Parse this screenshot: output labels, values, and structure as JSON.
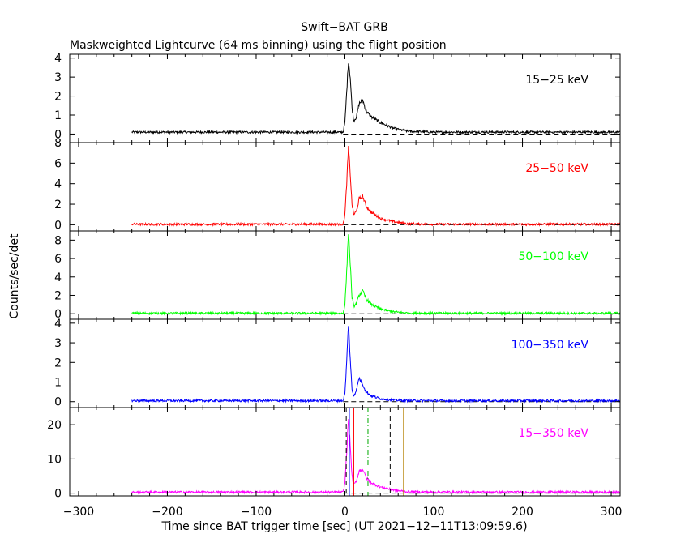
{
  "chart_data": {
    "type": "line",
    "title": "Swift−BAT GRB",
    "subtitle": "Maskweighted Lightcurve (64 ms binning) using the flight position",
    "xlabel": "Time since BAT trigger time [sec] (UT 2021−12−11T13:09:59.6)",
    "ylabel": "Counts/sec/det",
    "xlim": [
      -310,
      310
    ],
    "x_ticks": [
      -300,
      -200,
      -100,
      0,
      100,
      200,
      300
    ],
    "x_tick_labels": [
      "−300",
      "−200",
      "−100",
      "0",
      "100",
      "200",
      "300"
    ],
    "data_start": -240,
    "grid": false,
    "panels": [
      {
        "band": "15−25 keV",
        "color": "#000000",
        "ylim": [
          -0.45,
          4.2
        ],
        "y_ticks": [
          0,
          1,
          2,
          3,
          4
        ],
        "x": [
          -240,
          -100,
          -2,
          0,
          2,
          4,
          6,
          8,
          10,
          13,
          16,
          20,
          24,
          30,
          40,
          55,
          70,
          100,
          200,
          310
        ],
        "y": [
          0.1,
          0.1,
          0.1,
          0.6,
          2.2,
          3.9,
          3.0,
          1.4,
          0.7,
          0.9,
          1.6,
          1.8,
          1.2,
          0.9,
          0.6,
          0.3,
          0.15,
          0.1,
          0.1,
          0.1
        ]
      },
      {
        "band": "25−50 keV",
        "color": "#ff0000",
        "ylim": [
          -0.6,
          8.0
        ],
        "y_ticks": [
          0,
          2,
          4,
          6,
          8
        ],
        "x": [
          -240,
          -100,
          -2,
          0,
          2,
          4,
          6,
          8,
          10,
          13,
          16,
          20,
          24,
          30,
          40,
          55,
          70,
          100,
          200,
          310
        ],
        "y": [
          0.05,
          0.05,
          0.05,
          1.0,
          4.0,
          7.5,
          5.0,
          2.0,
          1.0,
          1.3,
          2.5,
          2.8,
          1.8,
          1.2,
          0.6,
          0.3,
          0.1,
          0.05,
          0.05,
          0.05
        ]
      },
      {
        "band": "50−100 keV",
        "color": "#00ff00",
        "ylim": [
          -0.6,
          9.0
        ],
        "y_ticks": [
          0,
          2,
          4,
          6,
          8
        ],
        "x": [
          -240,
          -100,
          -2,
          0,
          2,
          4,
          6,
          8,
          10,
          13,
          16,
          20,
          24,
          30,
          40,
          55,
          70,
          100,
          200,
          310
        ],
        "y": [
          0.05,
          0.05,
          0.05,
          1.0,
          4.5,
          9.0,
          5.5,
          1.8,
          0.8,
          1.1,
          2.0,
          2.5,
          1.6,
          1.0,
          0.5,
          0.2,
          0.08,
          0.05,
          0.05,
          0.05
        ]
      },
      {
        "band": "100−350 keV",
        "color": "#0000ff",
        "ylim": [
          -0.3,
          4.2
        ],
        "y_ticks": [
          0,
          1,
          2,
          3,
          4
        ],
        "x": [
          -240,
          -100,
          -2,
          0,
          2,
          4,
          6,
          8,
          10,
          13,
          16,
          20,
          24,
          30,
          40,
          55,
          70,
          100,
          200,
          310
        ],
        "y": [
          0.05,
          0.05,
          0.05,
          0.4,
          2.0,
          4.0,
          2.2,
          0.6,
          0.3,
          0.6,
          1.2,
          0.9,
          0.5,
          0.3,
          0.15,
          0.08,
          0.05,
          0.05,
          0.05,
          0.05
        ]
      },
      {
        "band": "15−350 keV",
        "color": "#ff00ff",
        "ylim": [
          -0.8,
          25.0
        ],
        "y_ticks": [
          0,
          10,
          20
        ],
        "x": [
          -240,
          -100,
          -2,
          0,
          2,
          4,
          6,
          8,
          10,
          13,
          16,
          20,
          24,
          30,
          40,
          55,
          70,
          100,
          200,
          310
        ],
        "y": [
          0.3,
          0.3,
          0.3,
          3.0,
          12.0,
          22.0,
          14.0,
          5.0,
          2.5,
          3.5,
          6.5,
          7.0,
          4.5,
          3.0,
          1.8,
          0.9,
          0.4,
          0.3,
          0.3,
          0.3
        ],
        "markers": [
          {
            "x": 1.5,
            "color": "#000000",
            "style": "dash"
          },
          {
            "x": 5,
            "color": "#0000ff",
            "style": "solid"
          },
          {
            "x": 10,
            "color": "#ff0000",
            "style": "solid"
          },
          {
            "x": 26,
            "color": "#00aa00",
            "style": "dashdot"
          },
          {
            "x": 51,
            "color": "#000000",
            "style": "dash"
          },
          {
            "x": 66,
            "color": "#b8860b",
            "style": "solid"
          }
        ]
      }
    ]
  }
}
